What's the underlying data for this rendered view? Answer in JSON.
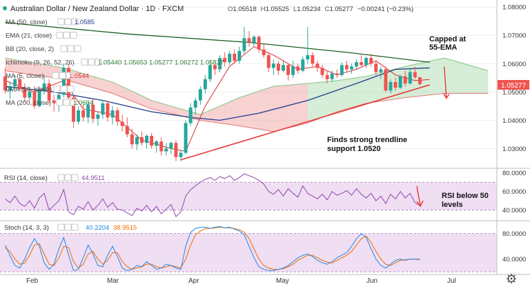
{
  "header": {
    "pair": "Australian Dollar / New Zealand Dollar · 1D · FXCM",
    "ohlc": [
      {
        "label": "O",
        "value": "1.05518"
      },
      {
        "label": "H",
        "value": "1.05525"
      },
      {
        "label": "L",
        "value": "1.05234"
      },
      {
        "label": "C",
        "value": "1.05277"
      },
      {
        "label": "",
        "value": "−0.00241 (−0.23%)"
      }
    ]
  },
  "legend": [
    {
      "name": "MA (50, close)",
      "value": "1.0585"
    },
    {
      "name": "EMA (21, close)",
      "value": ""
    },
    {
      "name": "BB (20, close, 2)",
      "value": ""
    },
    {
      "name": "Ichimoku (9, 26, 52, 26)",
      "value": "1.05440  1.05653  1.05277  1.06272  1.05827"
    },
    {
      "name": "MA (5, close)",
      "value": "1.0544"
    },
    {
      "name": "EMA (55, close)",
      "value": ""
    },
    {
      "name": "MA (200, close)",
      "value": "1.0604"
    }
  ],
  "price_axis": {
    "ticks": [
      "1.08000",
      "1.07000",
      "1.06000",
      "1.05000",
      "1.04000",
      "1.03000"
    ],
    "last_price": "1.05277"
  },
  "annotations": {
    "capped": [
      "Capped at",
      "55-EMA"
    ],
    "trendline": [
      "Finds strong trendline",
      "support 1.0520"
    ],
    "rsi": [
      "RSI below 50",
      "levels"
    ]
  },
  "rsi": {
    "label": "RSI (14, close)",
    "value": "44.9511",
    "ticks": [
      "80.0000",
      "60.0000",
      "40.0000"
    ]
  },
  "stoch": {
    "label": "Stoch (14, 3, 3)",
    "k": "40.2204",
    "d": "38.9515",
    "ticks": [
      "80.0000",
      "40.0000"
    ]
  },
  "time_axis": [
    "Feb",
    "Mar",
    "Apr",
    "May",
    "Jun",
    "Jul"
  ],
  "colors": {
    "candle_up": "#26a69a",
    "candle_down": "#ef5350",
    "ema55": "#1b5e20",
    "ma50": "#1e3a8a",
    "ma5": "#d32f2f",
    "trendline": "#e53935",
    "cloud_bull": "#a5d6a7",
    "cloud_bear": "#ef9a9a",
    "rsi_line": "#8e44ad",
    "rsi_band": "#e1bee7",
    "stoch_k": "#1e88e5",
    "stoch_d": "#ef6c00",
    "last_price_bg": "#ef5350"
  },
  "chart_data": [
    {
      "type": "candlestick",
      "title": "Australian Dollar / New Zealand Dollar · 1D · FXCM",
      "ylim": [
        1.024,
        1.082
      ],
      "candles": [
        [
          1.0555,
          1.0585,
          1.0495,
          1.0505
        ],
        [
          1.0505,
          1.0535,
          1.0475,
          1.052
        ],
        [
          1.052,
          1.056,
          1.051,
          1.0545
        ],
        [
          1.0545,
          1.0555,
          1.0505,
          1.051
        ],
        [
          1.051,
          1.053,
          1.0465,
          1.048
        ],
        [
          1.048,
          1.0515,
          1.047,
          1.05
        ],
        [
          1.05,
          1.052,
          1.044,
          1.045
        ],
        [
          1.045,
          1.052,
          1.0445,
          1.0505
        ],
        [
          1.0505,
          1.056,
          1.049,
          1.053
        ],
        [
          1.053,
          1.0545,
          1.046,
          1.047
        ],
        [
          1.047,
          1.049,
          1.043,
          1.046
        ],
        [
          1.046,
          1.05,
          1.043,
          1.049
        ],
        [
          1.049,
          1.06,
          1.048,
          1.0585
        ],
        [
          1.0585,
          1.06,
          1.047,
          1.048
        ],
        [
          1.048,
          1.049,
          1.0375,
          1.0395
        ],
        [
          1.0395,
          1.045,
          1.0385,
          1.0435
        ],
        [
          1.0435,
          1.0455,
          1.0395,
          1.041
        ],
        [
          1.041,
          1.0465,
          1.039,
          1.0455
        ],
        [
          1.0455,
          1.0475,
          1.039,
          1.0405
        ],
        [
          1.0405,
          1.043,
          1.038,
          1.042
        ],
        [
          1.042,
          1.047,
          1.0405,
          1.046
        ],
        [
          1.046,
          1.047,
          1.0395,
          1.041
        ],
        [
          1.041,
          1.045,
          1.0385,
          1.0435
        ],
        [
          1.0435,
          1.0445,
          1.038,
          1.0395
        ],
        [
          1.0395,
          1.042,
          1.036,
          1.038
        ],
        [
          1.038,
          1.041,
          1.034,
          1.035
        ],
        [
          1.035,
          1.037,
          1.03,
          1.0315
        ],
        [
          1.0315,
          1.035,
          1.0295,
          1.034
        ],
        [
          1.034,
          1.036,
          1.031,
          1.032
        ],
        [
          1.032,
          1.035,
          1.03,
          1.0345
        ],
        [
          1.0345,
          1.0355,
          1.03,
          1.031
        ],
        [
          1.031,
          1.033,
          1.0285,
          1.0325
        ],
        [
          1.0325,
          1.034,
          1.0275,
          1.029
        ],
        [
          1.029,
          1.032,
          1.0275,
          1.03
        ],
        [
          1.03,
          1.0325,
          1.028,
          1.032
        ],
        [
          1.032,
          1.033,
          1.0255,
          1.027
        ],
        [
          1.027,
          1.0295,
          1.0255,
          1.0285
        ],
        [
          1.0285,
          1.04,
          1.028,
          1.039
        ],
        [
          1.039,
          1.046,
          1.038,
          1.0445
        ],
        [
          1.0445,
          1.048,
          1.042,
          1.047
        ],
        [
          1.047,
          1.052,
          1.0455,
          1.051
        ],
        [
          1.051,
          1.056,
          1.0495,
          1.0545
        ],
        [
          1.0545,
          1.061,
          1.0535,
          1.0595
        ],
        [
          1.0595,
          1.06,
          1.056,
          1.058
        ],
        [
          1.058,
          1.063,
          1.057,
          1.062
        ],
        [
          1.062,
          1.064,
          1.059,
          1.0605
        ],
        [
          1.0605,
          1.0645,
          1.0595,
          1.0635
        ],
        [
          1.0635,
          1.065,
          1.06,
          1.061
        ],
        [
          1.061,
          1.066,
          1.06,
          1.0645
        ],
        [
          1.0645,
          1.073,
          1.0635,
          1.069
        ],
        [
          1.069,
          1.0715,
          1.066,
          1.0675
        ],
        [
          1.0675,
          1.07,
          1.066,
          1.0695
        ],
        [
          1.0695,
          1.07,
          1.064,
          1.065
        ],
        [
          1.065,
          1.067,
          1.062,
          1.063
        ],
        [
          1.063,
          1.064,
          1.057,
          1.0585
        ],
        [
          1.0585,
          1.0615,
          1.056,
          1.06
        ],
        [
          1.06,
          1.061,
          1.056,
          1.0575
        ],
        [
          1.0575,
          1.061,
          1.057,
          1.0595
        ],
        [
          1.0595,
          1.06,
          1.054,
          1.056
        ],
        [
          1.056,
          1.061,
          1.055,
          1.059
        ],
        [
          1.059,
          1.06,
          1.0565,
          1.0575
        ],
        [
          1.0575,
          1.0625,
          1.057,
          1.0615
        ],
        [
          1.0615,
          1.073,
          1.06,
          1.063
        ],
        [
          1.063,
          1.064,
          1.059,
          1.06
        ],
        [
          1.06,
          1.061,
          1.057,
          1.0585
        ],
        [
          1.0585,
          1.0595,
          1.055,
          1.056
        ],
        [
          1.056,
          1.0575,
          1.053,
          1.0545
        ],
        [
          1.0545,
          1.0575,
          1.0535,
          1.0565
        ],
        [
          1.0565,
          1.058,
          1.055,
          1.056
        ],
        [
          1.056,
          1.0605,
          1.0555,
          1.0595
        ],
        [
          1.0595,
          1.061,
          1.057,
          1.058
        ],
        [
          1.058,
          1.06,
          1.0565,
          1.059
        ],
        [
          1.059,
          1.0615,
          1.058,
          1.0605
        ],
        [
          1.0605,
          1.063,
          1.059,
          1.0595
        ],
        [
          1.0595,
          1.0625,
          1.0585,
          1.062
        ],
        [
          1.062,
          1.0635,
          1.059,
          1.06
        ],
        [
          1.06,
          1.061,
          1.056,
          1.057
        ],
        [
          1.057,
          1.059,
          1.0545,
          1.058
        ],
        [
          1.058,
          1.059,
          1.05,
          1.0505
        ],
        [
          1.0505,
          1.0545,
          1.0495,
          1.0535
        ],
        [
          1.0535,
          1.055,
          1.0505,
          1.0515
        ],
        [
          1.0515,
          1.056,
          1.051,
          1.0555
        ],
        [
          1.0555,
          1.0575,
          1.052,
          1.053
        ],
        [
          1.053,
          1.058,
          1.0525,
          1.057
        ],
        [
          1.057,
          1.059,
          1.0545,
          1.0552
        ],
        [
          1.0552,
          1.0553,
          1.0523,
          1.0528
        ]
      ],
      "series": [
        {
          "name": "EMA (55, close)",
          "points": [
            [
              0,
              1.0745
            ],
            [
              25,
              1.0705
            ],
            [
              50,
              1.0675
            ],
            [
              70,
              1.064
            ],
            [
              87,
              1.0605
            ]
          ]
        },
        {
          "name": "MA (50, close)",
          "points": [
            [
              0,
              1.052
            ],
            [
              10,
              1.05
            ],
            [
              20,
              1.047
            ],
            [
              30,
              1.043
            ],
            [
              38,
              1.041
            ],
            [
              44,
              1.04
            ],
            [
              52,
              1.0425
            ],
            [
              62,
              1.047
            ],
            [
              72,
              1.053
            ],
            [
              80,
              1.058
            ],
            [
              87,
              1.0585
            ]
          ]
        },
        {
          "name": "MA (5, close)",
          "points": [
            [
              0,
              1.054
            ],
            [
              6,
              1.05
            ],
            [
              12,
              1.054
            ],
            [
              16,
              1.044
            ],
            [
              22,
              1.042
            ],
            [
              28,
              1.033
            ],
            [
              34,
              1.03
            ],
            [
              37,
              1.029
            ],
            [
              41,
              1.045
            ],
            [
              46,
              1.059
            ],
            [
              51,
              1.066
            ],
            [
              55,
              1.063
            ],
            [
              60,
              1.058
            ],
            [
              64,
              1.059
            ],
            [
              68,
              1.056
            ],
            [
              72,
              1.058
            ],
            [
              76,
              1.061
            ],
            [
              80,
              1.056
            ],
            [
              84,
              1.054
            ],
            [
              87,
              1.0544
            ]
          ]
        }
      ],
      "cloud": {
        "upper": [
          [
            0,
            1.062
          ],
          [
            12,
            1.0585
          ],
          [
            22,
            1.0535
          ],
          [
            30,
            1.047
          ],
          [
            40,
            1.042
          ],
          [
            48,
            1.048
          ],
          [
            55,
            1.052
          ],
          [
            62,
            1.053
          ],
          [
            68,
            1.054
          ],
          [
            74,
            1.0555
          ],
          [
            82,
            1.059
          ],
          [
            90,
            1.062
          ],
          [
            96,
            1.059
          ],
          [
            99,
            1.0575
          ]
        ],
        "lower": [
          [
            0,
            1.0575
          ],
          [
            12,
            1.0545
          ],
          [
            22,
            1.0495
          ],
          [
            30,
            1.044
          ],
          [
            40,
            1.04
          ],
          [
            48,
            1.038
          ],
          [
            55,
            1.036
          ],
          [
            62,
            1.039
          ],
          [
            68,
            1.043
          ],
          [
            74,
            1.046
          ],
          [
            82,
            1.048
          ],
          [
            90,
            1.0495
          ],
          [
            96,
            1.0495
          ],
          [
            99,
            1.0495
          ]
        ]
      },
      "trendline": {
        "label": "support 1.0520",
        "points": [
          [
            36,
            1.026
          ],
          [
            87,
            1.0525
          ]
        ]
      },
      "future_arrow": {
        "from": 90,
        "from_price": 1.059,
        "to_price": 1.048
      }
    },
    {
      "type": "line",
      "title": "RSI (14, close)",
      "ylim": [
        30,
        82
      ],
      "band": [
        40,
        70
      ],
      "series": [
        {
          "name": "RSI (14, close)",
          "values": [
            52,
            48,
            55,
            47,
            44,
            50,
            42,
            53,
            58,
            40,
            45,
            50,
            62,
            38,
            35,
            44,
            41,
            49,
            40,
            45,
            52,
            43,
            48,
            41,
            40,
            37,
            34,
            42,
            39,
            45,
            38,
            44,
            36,
            41,
            46,
            33,
            38,
            55,
            62,
            66,
            70,
            73,
            75,
            72,
            76,
            74,
            77,
            72,
            75,
            79,
            77,
            75,
            72,
            68,
            60,
            57,
            62,
            55,
            63,
            58,
            54,
            66,
            58,
            55,
            52,
            57,
            51,
            60,
            56,
            58,
            61,
            56,
            63,
            57,
            53,
            58,
            50,
            55,
            47,
            57,
            52,
            60,
            53,
            58,
            48,
            45
          ]
        }
      ]
    },
    {
      "type": "line",
      "title": "Stoch (14, 3, 3)",
      "ylim": [
        18,
        98
      ],
      "band": [
        20,
        80
      ],
      "series": [
        {
          "name": "%K",
          "values": [
            62,
            45,
            30,
            26,
            40,
            58,
            72,
            60,
            34,
            24,
            32,
            56,
            74,
            46,
            22,
            24,
            42,
            62,
            48,
            30,
            28,
            46,
            60,
            44,
            26,
            22,
            24,
            30,
            28,
            36,
            30,
            24,
            26,
            32,
            30,
            26,
            24,
            60,
            82,
            88,
            90,
            90,
            88,
            90,
            91,
            89,
            90,
            87,
            84,
            78,
            60,
            42,
            28,
            24,
            22,
            22,
            24,
            26,
            30,
            36,
            42,
            46,
            48,
            44,
            38,
            34,
            32,
            36,
            42,
            46,
            50,
            60,
            72,
            80,
            74,
            56,
            40,
            30,
            26,
            32,
            38,
            40,
            38,
            40,
            40,
            40
          ]
        },
        {
          "name": "%D",
          "values": [
            58,
            52,
            40,
            32,
            34,
            46,
            62,
            64,
            48,
            32,
            30,
            42,
            60,
            58,
            36,
            26,
            32,
            48,
            52,
            40,
            32,
            38,
            50,
            50,
            36,
            28,
            24,
            26,
            28,
            32,
            32,
            28,
            26,
            28,
            30,
            28,
            26,
            40,
            62,
            78,
            84,
            88,
            88,
            89,
            90,
            89,
            89,
            88,
            86,
            82,
            72,
            56,
            40,
            30,
            26,
            24,
            24,
            25,
            28,
            32,
            38,
            42,
            46,
            46,
            42,
            38,
            35,
            34,
            38,
            42,
            46,
            52,
            62,
            72,
            76,
            66,
            52,
            40,
            32,
            30,
            34,
            38,
            39,
            40,
            40,
            39
          ]
        }
      ]
    }
  ]
}
